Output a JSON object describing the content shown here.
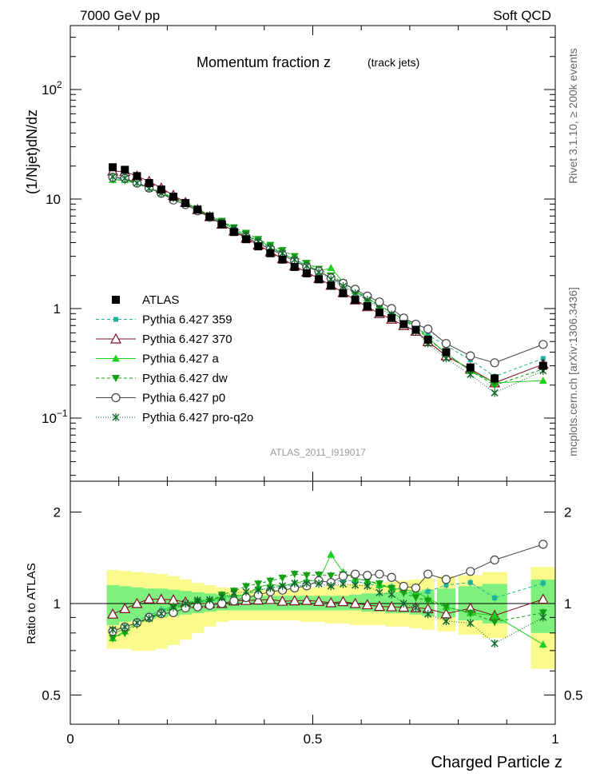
{
  "header": {
    "left": "7000 GeV pp",
    "right": "Soft QCD"
  },
  "side_text": {
    "rivet": "Rivet 3.1.10, ≥ 200k events",
    "mcplots": "mcplots.cern.ch [arXiv:1306.3436]"
  },
  "main": {
    "title": "Momentum fraction z",
    "title_sub": "(track jets)",
    "ylabel": "(1/Njet)dN/dz",
    "analysis_tag": "ATLAS_2011_I919017",
    "yticks": [
      {
        "value": 0.1,
        "base": "10",
        "exp": "−1"
      },
      {
        "value": 1,
        "label": "1"
      },
      {
        "value": 10,
        "label": "10"
      },
      {
        "value": 100,
        "base": "10",
        "exp": "2"
      }
    ]
  },
  "ratio": {
    "ylabel": "Ratio to ATLAS",
    "yticks": [
      "0.5",
      "1",
      "2"
    ]
  },
  "xaxis": {
    "label": "Charged Particle z",
    "ticks": [
      "0",
      "0.5",
      "1"
    ]
  },
  "colors": {
    "atlas": "#000000",
    "p359": "#1fb39a",
    "p370": "#7a1020",
    "pa": "#20d020",
    "pdw": "#14a014",
    "pp0": "#444444",
    "pq2o": "#0e6a2a",
    "band_inner": "#7df07d",
    "band_outer": "#fafa8c"
  },
  "legend": [
    {
      "key": "atlas",
      "label": "ATLAS"
    },
    {
      "key": "p359",
      "label": "Pythia 6.427 359"
    },
    {
      "key": "p370",
      "label": "Pythia 6.427 370"
    },
    {
      "key": "pa",
      "label": "Pythia 6.427 a"
    },
    {
      "key": "pdw",
      "label": "Pythia 6.427 dw"
    },
    {
      "key": "pp0",
      "label": "Pythia 6.427 p0"
    },
    {
      "key": "pq2o",
      "label": "Pythia 6.427 pro-q2o"
    }
  ],
  "chart_data": {
    "type": "line",
    "title": "Momentum fraction z (track jets)",
    "xlabel": "Charged Particle z",
    "ylabel": "(1/Njet)dN/dz",
    "yscale": "log",
    "xlim": [
      0,
      1
    ],
    "ylim": [
      0.02,
      300
    ],
    "ratio_ylabel": "Ratio to ATLAS",
    "ratio_ylim": [
      0.37,
      2.5
    ],
    "x": [
      0.0875,
      0.1125,
      0.1375,
      0.1625,
      0.1875,
      0.2125,
      0.2375,
      0.2625,
      0.2875,
      0.3125,
      0.3375,
      0.3625,
      0.3875,
      0.4125,
      0.4375,
      0.4625,
      0.4875,
      0.5125,
      0.5375,
      0.5625,
      0.5875,
      0.6125,
      0.6375,
      0.6625,
      0.6875,
      0.7125,
      0.7375,
      0.775,
      0.825,
      0.875,
      0.975
    ],
    "data": {
      "values": [
        19.5,
        18.5,
        16.2,
        14.0,
        12.2,
        10.5,
        9.2,
        8.0,
        6.9,
        5.9,
        5.0,
        4.3,
        3.7,
        3.2,
        2.8,
        2.4,
        2.1,
        1.85,
        1.62,
        1.38,
        1.2,
        1.05,
        0.92,
        0.82,
        0.72,
        0.64,
        0.52,
        0.4,
        0.29,
        0.23,
        0.3
      ],
      "errors": [
        1.2,
        1.0,
        0.9,
        0.8,
        0.7,
        0.6,
        0.5,
        0.45,
        0.4,
        0.35,
        0.3,
        0.25,
        0.22,
        0.2,
        0.17,
        0.15,
        0.13,
        0.12,
        0.1,
        0.09,
        0.08,
        0.07,
        0.06,
        0.06,
        0.05,
        0.05,
        0.04,
        0.03,
        0.03,
        0.025,
        0.04
      ]
    },
    "ratio_band_inner": [
      [
        0.85,
        1.15
      ],
      [
        0.87,
        1.14
      ],
      [
        0.88,
        1.13
      ],
      [
        0.89,
        1.12
      ],
      [
        0.9,
        1.12
      ],
      [
        0.91,
        1.11
      ],
      [
        0.92,
        1.1
      ],
      [
        0.93,
        1.09
      ],
      [
        0.94,
        1.08
      ],
      [
        0.95,
        1.07
      ],
      [
        0.95,
        1.07
      ],
      [
        0.95,
        1.06
      ],
      [
        0.95,
        1.06
      ],
      [
        0.95,
        1.06
      ],
      [
        0.95,
        1.06
      ],
      [
        0.95,
        1.06
      ],
      [
        0.95,
        1.06
      ],
      [
        0.95,
        1.06
      ],
      [
        0.95,
        1.06
      ],
      [
        0.95,
        1.06
      ],
      [
        0.95,
        1.07
      ],
      [
        0.94,
        1.08
      ],
      [
        0.94,
        1.08
      ],
      [
        0.93,
        1.09
      ],
      [
        0.93,
        1.09
      ],
      [
        0.92,
        1.1
      ],
      [
        0.91,
        1.11
      ],
      [
        0.9,
        1.12
      ],
      [
        0.88,
        1.14
      ],
      [
        0.86,
        1.16
      ],
      [
        0.8,
        1.2
      ]
    ],
    "ratio_band_outer": [
      [
        0.71,
        1.29
      ],
      [
        0.71,
        1.28
      ],
      [
        0.7,
        1.27
      ],
      [
        0.7,
        1.26
      ],
      [
        0.71,
        1.25
      ],
      [
        0.73,
        1.23
      ],
      [
        0.76,
        1.2
      ],
      [
        0.8,
        1.17
      ],
      [
        0.84,
        1.15
      ],
      [
        0.87,
        1.13
      ],
      [
        0.88,
        1.12
      ],
      [
        0.88,
        1.11
      ],
      [
        0.88,
        1.11
      ],
      [
        0.88,
        1.11
      ],
      [
        0.88,
        1.11
      ],
      [
        0.88,
        1.12
      ],
      [
        0.87,
        1.13
      ],
      [
        0.87,
        1.13
      ],
      [
        0.86,
        1.14
      ],
      [
        0.86,
        1.15
      ],
      [
        0.85,
        1.16
      ],
      [
        0.85,
        1.16
      ],
      [
        0.85,
        1.17
      ],
      [
        0.84,
        1.18
      ],
      [
        0.84,
        1.19
      ],
      [
        0.83,
        1.2
      ],
      [
        0.82,
        1.21
      ],
      [
        0.81,
        1.23
      ],
      [
        0.79,
        1.24
      ],
      [
        0.77,
        1.27
      ],
      [
        0.61,
        1.32
      ]
    ],
    "series": [
      {
        "name": "Pythia 6.427 359",
        "key": "p359",
        "marker": "square-small",
        "dash": "4,3",
        "values": [
          15.5,
          15.3,
          14.2,
          12.8,
          11.6,
          10.3,
          9.3,
          8.1,
          7.0,
          6.1,
          5.3,
          4.6,
          4.1,
          3.6,
          3.2,
          2.75,
          2.4,
          2.2,
          1.9,
          1.65,
          1.42,
          1.22,
          1.05,
          0.93,
          0.8,
          0.68,
          0.57,
          0.46,
          0.34,
          0.24,
          0.35
        ]
      },
      {
        "name": "Pythia 6.427 370",
        "key": "p370",
        "marker": "triangle-open",
        "dash": "",
        "values": [
          18.0,
          17.8,
          16.2,
          14.5,
          12.6,
          10.8,
          9.3,
          8.0,
          6.9,
          5.9,
          5.1,
          4.4,
          3.8,
          3.3,
          2.85,
          2.45,
          2.15,
          1.88,
          1.63,
          1.4,
          1.2,
          1.04,
          0.9,
          0.8,
          0.7,
          0.62,
          0.5,
          0.37,
          0.28,
          0.21,
          0.31
        ]
      },
      {
        "name": "Pythia 6.427 a",
        "key": "pa",
        "marker": "triangle-filled",
        "dash": "",
        "values": [
          15.0,
          15.0,
          14.0,
          12.6,
          11.5,
          10.3,
          9.1,
          8.2,
          7.0,
          6.2,
          5.3,
          4.6,
          4.2,
          3.7,
          3.2,
          2.8,
          2.5,
          2.2,
          2.35,
          1.75,
          1.45,
          1.25,
          1.06,
          0.92,
          0.8,
          0.7,
          0.54,
          0.39,
          0.27,
          0.21,
          0.22
        ]
      },
      {
        "name": "Pythia 6.427 dw",
        "key": "pdw",
        "marker": "triangle-down",
        "dash": "4,3",
        "values": [
          15.0,
          14.8,
          13.8,
          12.5,
          11.3,
          10.2,
          9.0,
          8.1,
          7.0,
          6.3,
          5.5,
          4.9,
          4.3,
          3.8,
          3.4,
          3.0,
          2.6,
          2.3,
          2.0,
          1.72,
          1.45,
          1.25,
          1.07,
          0.92,
          0.78,
          0.67,
          0.53,
          0.39,
          0.27,
          0.2,
          0.28
        ]
      },
      {
        "name": "Pythia 6.427 p0",
        "key": "pp0",
        "marker": "circle-open",
        "dash": "",
        "values": [
          15.8,
          15.5,
          14.0,
          12.6,
          11.3,
          9.8,
          8.9,
          7.8,
          6.8,
          5.9,
          5.1,
          4.5,
          3.95,
          3.5,
          3.1,
          2.7,
          2.4,
          2.2,
          1.9,
          1.7,
          1.5,
          1.3,
          1.15,
          1.0,
          0.82,
          0.72,
          0.65,
          0.48,
          0.37,
          0.32,
          0.47
        ]
      },
      {
        "name": "Pythia 6.427 pro-q2o",
        "key": "pq2o",
        "marker": "star",
        "dash": "1,2",
        "values": [
          16.0,
          15.5,
          14.0,
          12.5,
          11.3,
          10.2,
          9.2,
          8.2,
          7.1,
          6.2,
          5.4,
          4.7,
          4.1,
          3.6,
          3.2,
          2.8,
          2.45,
          2.15,
          1.85,
          1.6,
          1.38,
          1.2,
          1.0,
          0.88,
          0.72,
          0.62,
          0.48,
          0.35,
          0.25,
          0.17,
          0.27
        ]
      }
    ]
  }
}
